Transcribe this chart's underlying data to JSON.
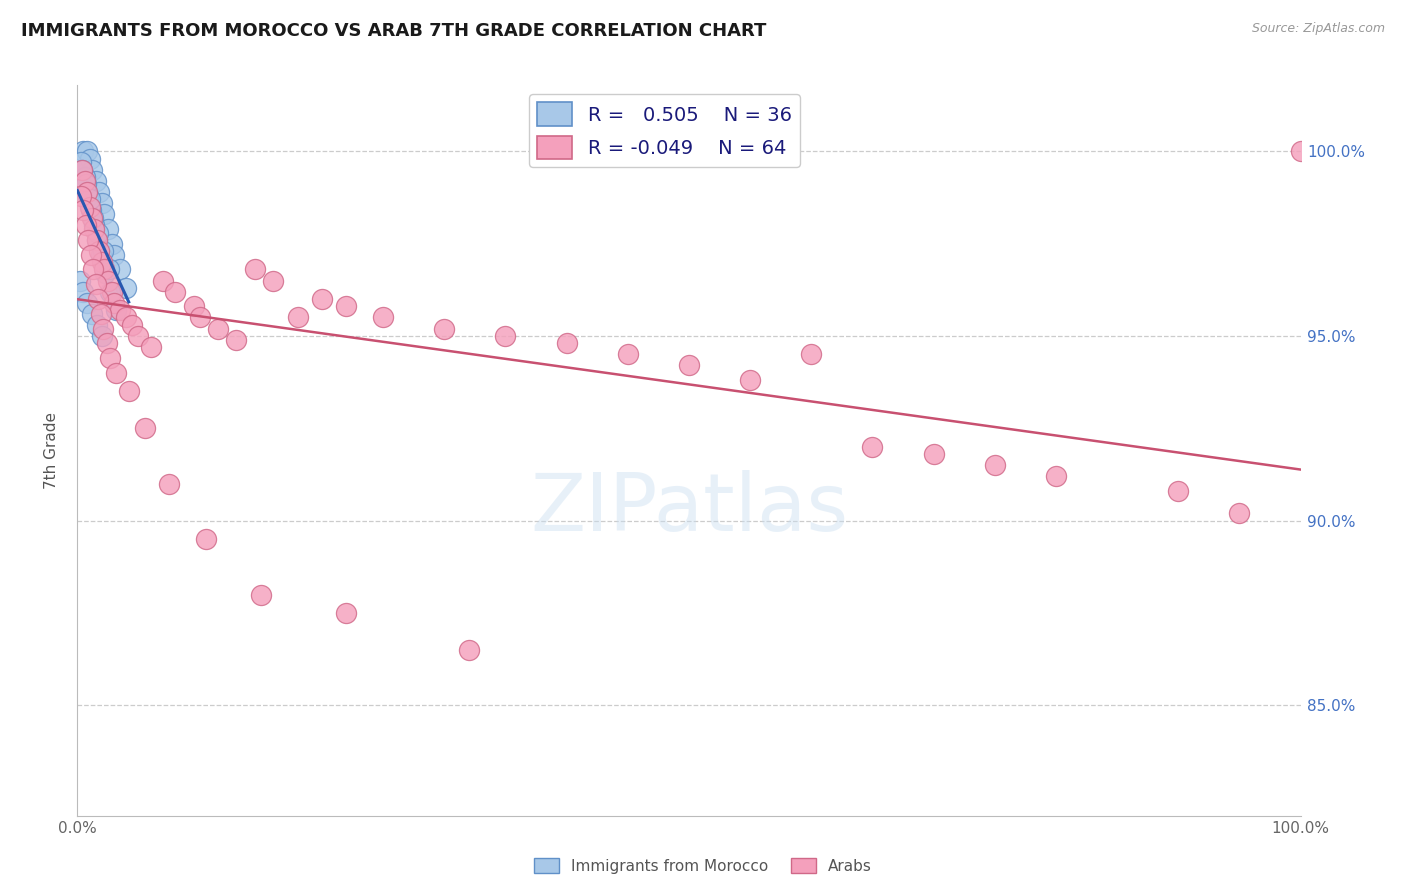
{
  "title": "IMMIGRANTS FROM MOROCCO VS ARAB 7TH GRADE CORRELATION CHART",
  "source": "Source: ZipAtlas.com",
  "ylabel": "7th Grade",
  "y_ticks": [
    85.0,
    90.0,
    95.0,
    100.0
  ],
  "x_range": [
    0.0,
    100.0
  ],
  "y_range": [
    82.0,
    101.8
  ],
  "legend_blue_r": "0.505",
  "legend_blue_n": "36",
  "legend_pink_r": "-0.049",
  "legend_pink_n": "64",
  "blue_color": "#a8c8e8",
  "pink_color": "#f4a0bc",
  "blue_edge": "#6090c8",
  "pink_edge": "#d06888",
  "trend_blue": "#2858b0",
  "trend_pink": "#c85070",
  "watermark_text": "ZIPatlas",
  "blue_x": [
    0.5,
    0.8,
    1.0,
    1.2,
    1.5,
    1.8,
    2.0,
    2.2,
    2.5,
    2.8,
    3.0,
    3.5,
    4.0,
    0.3,
    0.6,
    0.9,
    1.1,
    1.4,
    1.6,
    1.9,
    2.3,
    2.7,
    3.2,
    0.4,
    0.7,
    1.0,
    1.3,
    1.7,
    2.1,
    2.6,
    0.2,
    0.5,
    0.8,
    1.2,
    1.6,
    2.0
  ],
  "blue_y": [
    100.0,
    100.0,
    99.8,
    99.5,
    99.2,
    98.9,
    98.6,
    98.3,
    97.9,
    97.5,
    97.2,
    96.8,
    96.3,
    99.7,
    99.3,
    98.8,
    98.4,
    98.0,
    97.6,
    97.2,
    96.7,
    96.2,
    95.7,
    99.5,
    99.1,
    98.7,
    98.2,
    97.8,
    97.3,
    96.8,
    96.5,
    96.2,
    95.9,
    95.6,
    95.3,
    95.0
  ],
  "pink_x": [
    0.4,
    0.6,
    0.8,
    1.0,
    1.2,
    1.4,
    1.6,
    1.8,
    2.0,
    2.2,
    2.5,
    2.8,
    3.0,
    3.5,
    4.0,
    4.5,
    5.0,
    6.0,
    7.0,
    8.0,
    9.5,
    10.0,
    11.5,
    13.0,
    14.5,
    16.0,
    18.0,
    20.0,
    22.0,
    25.0,
    30.0,
    35.0,
    40.0,
    45.0,
    50.0,
    55.0,
    60.0,
    65.0,
    70.0,
    75.0,
    80.0,
    90.0,
    95.0,
    100.0,
    0.3,
    0.5,
    0.7,
    0.9,
    1.1,
    1.3,
    1.5,
    1.7,
    1.9,
    2.1,
    2.4,
    2.7,
    3.2,
    4.2,
    5.5,
    7.5,
    10.5,
    15.0,
    22.0,
    32.0
  ],
  "pink_y": [
    99.5,
    99.2,
    98.9,
    98.5,
    98.2,
    97.9,
    97.6,
    97.3,
    97.0,
    96.8,
    96.5,
    96.2,
    95.9,
    95.7,
    95.5,
    95.3,
    95.0,
    94.7,
    96.5,
    96.2,
    95.8,
    95.5,
    95.2,
    94.9,
    96.8,
    96.5,
    95.5,
    96.0,
    95.8,
    95.5,
    95.2,
    95.0,
    94.8,
    94.5,
    94.2,
    93.8,
    94.5,
    92.0,
    91.8,
    91.5,
    91.2,
    90.8,
    90.2,
    100.0,
    98.8,
    98.4,
    98.0,
    97.6,
    97.2,
    96.8,
    96.4,
    96.0,
    95.6,
    95.2,
    94.8,
    94.4,
    94.0,
    93.5,
    92.5,
    91.0,
    89.5,
    88.0,
    87.5,
    86.5
  ]
}
